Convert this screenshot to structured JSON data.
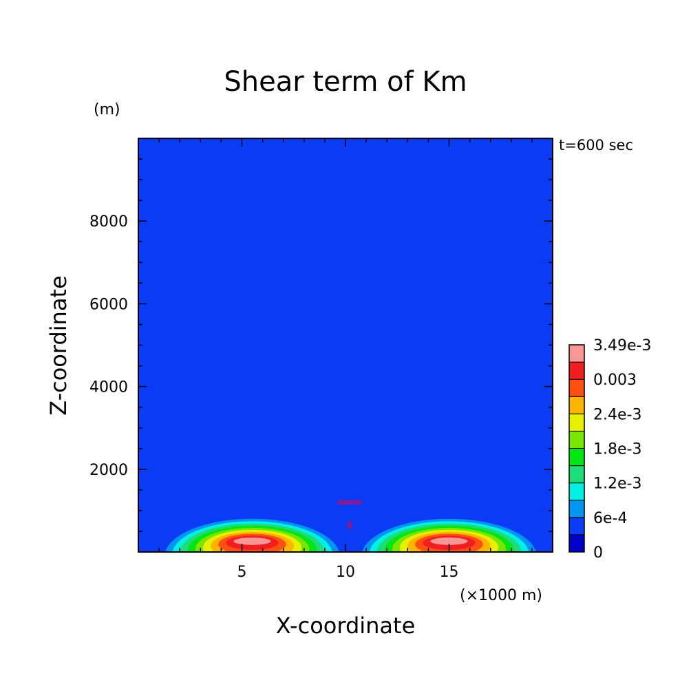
{
  "chart_data": {
    "type": "heatmap",
    "title": "Shear term of Km",
    "xlabel": "X-coordinate",
    "ylabel": "Z-coordinate",
    "x_unit": "(×1000 m)",
    "y_unit": "(m)",
    "time_label": "t=600 sec",
    "xlim": [
      0,
      20
    ],
    "ylim": [
      0,
      10000
    ],
    "x_ticks": [
      5,
      10,
      15
    ],
    "y_ticks": [
      2000,
      4000,
      6000,
      8000
    ],
    "x_minor_step": 1,
    "y_minor_step": 500,
    "levels": [
      0,
      0.0003,
      0.0006,
      0.0009,
      0.0012,
      0.0015,
      0.0018,
      0.0021,
      0.0024,
      0.0027,
      0.003,
      0.0033,
      0.00349
    ],
    "level_labels": [
      "0",
      "6e-4",
      "1.2e-3",
      "1.8e-3",
      "2.4e-3",
      "0.003",
      "3.49e-3"
    ],
    "colors": [
      "#0000c8",
      "#0a3cf5",
      "#0096f0",
      "#00f0e6",
      "#1edc78",
      "#00e614",
      "#78e600",
      "#e6f000",
      "#ffb400",
      "#ff5014",
      "#f01e1e",
      "#fa9696"
    ],
    "background_color": "#0a3cf5",
    "cores": [
      {
        "x": 5.5,
        "z": 300
      },
      {
        "x": 15,
        "z": 300
      }
    ],
    "central_feature": {
      "x": 10.2,
      "z": 1200,
      "value": 0.00045
    }
  }
}
